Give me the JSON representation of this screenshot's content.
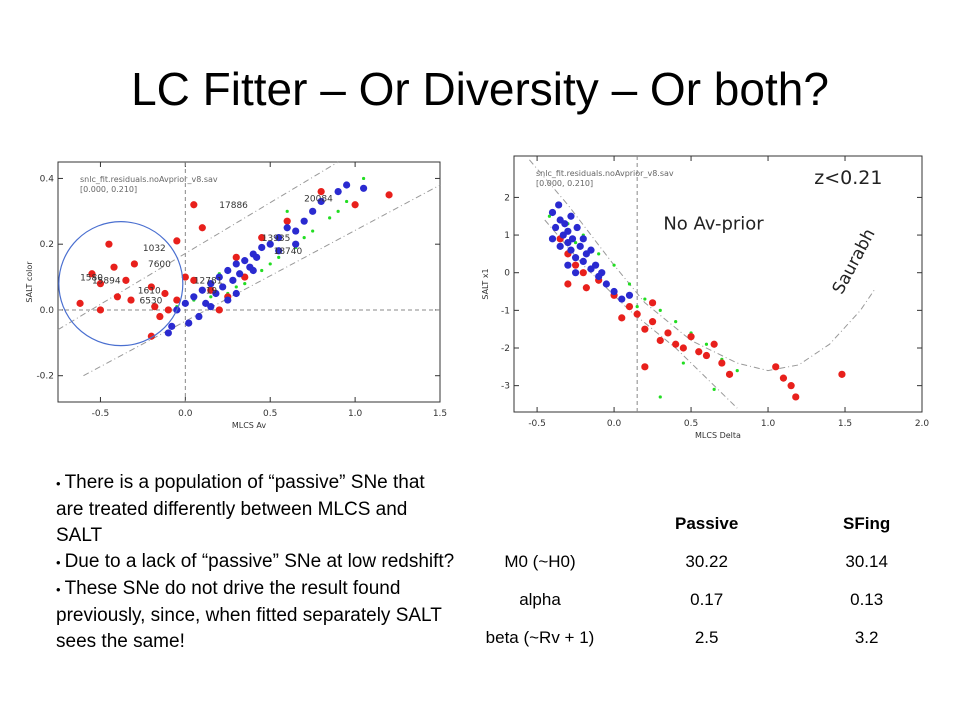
{
  "slide": {
    "title": "LC Fitter – Or Diversity – Or both?"
  },
  "bullets": [
    "There is a population of “passive” SNe that are treated differently between MLCS and SALT",
    "Due to a lack of “passive” SNe at low redshift?",
    "These SNe do not drive the result found previously, since, when fitted separately SALT sees the same!"
  ],
  "table": {
    "headers": [
      "",
      "Passive",
      "SFing"
    ],
    "rows": [
      [
        "M0 (~H0)",
        "30.22",
        "30.14"
      ],
      [
        "alpha",
        "0.17",
        "0.13"
      ],
      [
        "beta (~Rv + 1)",
        "2.5",
        "3.2"
      ]
    ]
  },
  "chart_data": [
    {
      "type": "scatter",
      "file_label": "snlc_fit.residuals.noAvprior_v8.sav",
      "range_label": "[0.000, 0.210]",
      "xlabel": "MLCS Av",
      "ylabel": "SALT color",
      "xlim": [
        -0.75,
        1.5
      ],
      "ylim": [
        -0.28,
        0.45
      ],
      "xticks": [
        "-0.5",
        "0.0",
        "0.5",
        "1.0",
        "1.5"
      ],
      "yticks": [
        "-0.2",
        "0.0",
        "0.2",
        "0.4"
      ],
      "sn_labels": [
        "17886",
        "20084",
        "1032",
        "7600",
        "1580",
        "15894",
        "13935",
        "18740",
        "12781",
        "19",
        "1610",
        "6530"
      ],
      "colors": {
        "red": "#e8201c",
        "blue": "#2a2ad0",
        "green": "#22dd22"
      },
      "series": [
        {
          "color": "red",
          "points": [
            [
              -0.62,
              0.02
            ],
            [
              -0.55,
              0.11
            ],
            [
              -0.5,
              0.08
            ],
            [
              -0.45,
              0.2
            ],
            [
              -0.42,
              0.13
            ],
            [
              -0.4,
              0.04
            ],
            [
              -0.35,
              0.09
            ],
            [
              -0.32,
              0.03
            ],
            [
              -0.5,
              0.0
            ],
            [
              -0.3,
              0.14
            ],
            [
              -0.2,
              0.07
            ],
            [
              -0.18,
              0.01
            ],
            [
              -0.12,
              0.05
            ],
            [
              -0.1,
              0.0
            ],
            [
              -0.05,
              0.03
            ],
            [
              -0.15,
              -0.02
            ],
            [
              -0.2,
              -0.08
            ],
            [
              0.05,
              0.32
            ],
            [
              -0.05,
              0.21
            ],
            [
              0.1,
              0.25
            ],
            [
              0.15,
              0.06
            ],
            [
              0.2,
              0.0
            ],
            [
              0.3,
              0.16
            ],
            [
              0.45,
              0.22
            ],
            [
              0.6,
              0.27
            ],
            [
              0.8,
              0.36
            ],
            [
              1.0,
              0.32
            ],
            [
              1.2,
              0.35
            ],
            [
              0.25,
              0.04
            ],
            [
              0.35,
              0.1
            ],
            [
              0.05,
              0.09
            ],
            [
              0.0,
              0.1
            ]
          ]
        },
        {
          "color": "blue",
          "points": [
            [
              -0.05,
              0.0
            ],
            [
              0.0,
              0.02
            ],
            [
              0.05,
              0.04
            ],
            [
              0.1,
              0.06
            ],
            [
              0.12,
              0.02
            ],
            [
              0.15,
              0.08
            ],
            [
              0.18,
              0.05
            ],
            [
              0.2,
              0.1
            ],
            [
              0.22,
              0.07
            ],
            [
              0.25,
              0.12
            ],
            [
              0.28,
              0.09
            ],
            [
              0.3,
              0.14
            ],
            [
              0.32,
              0.11
            ],
            [
              0.35,
              0.15
            ],
            [
              0.38,
              0.13
            ],
            [
              0.4,
              0.17
            ],
            [
              0.42,
              0.16
            ],
            [
              0.45,
              0.19
            ],
            [
              0.5,
              0.2
            ],
            [
              0.55,
              0.22
            ],
            [
              0.6,
              0.25
            ],
            [
              0.65,
              0.24
            ],
            [
              0.7,
              0.27
            ],
            [
              0.75,
              0.3
            ],
            [
              0.8,
              0.33
            ],
            [
              0.9,
              0.36
            ],
            [
              0.95,
              0.38
            ],
            [
              1.05,
              0.37
            ],
            [
              0.08,
              -0.02
            ],
            [
              -0.08,
              -0.05
            ],
            [
              0.02,
              -0.04
            ],
            [
              0.15,
              0.01
            ],
            [
              0.3,
              0.05
            ],
            [
              0.25,
              0.03
            ],
            [
              -0.1,
              -0.07
            ],
            [
              0.4,
              0.12
            ],
            [
              0.55,
              0.18
            ],
            [
              0.65,
              0.2
            ]
          ]
        },
        {
          "color": "green",
          "points": [
            [
              -0.05,
              0.01
            ],
            [
              0.05,
              0.03
            ],
            [
              0.15,
              0.04
            ],
            [
              0.25,
              0.05
            ],
            [
              0.35,
              0.08
            ],
            [
              0.45,
              0.12
            ],
            [
              0.55,
              0.16
            ],
            [
              0.65,
              0.19
            ],
            [
              0.75,
              0.24
            ],
            [
              0.85,
              0.28
            ],
            [
              0.95,
              0.33
            ],
            [
              1.05,
              0.4
            ],
            [
              0.6,
              0.3
            ],
            [
              0.7,
              0.22
            ],
            [
              0.5,
              0.14
            ],
            [
              0.3,
              0.07
            ],
            [
              0.2,
              0.11
            ],
            [
              0.9,
              0.3
            ]
          ]
        }
      ]
    },
    {
      "type": "scatter",
      "file_label": "snlc_fit.residuals.noAvprior_v8.sav",
      "range_label": "[0.000, 0.210]",
      "annotations": [
        "z<0.21",
        "No Av-prior",
        "Saurabh"
      ],
      "xlabel": "MLCS Delta",
      "ylabel": "SALT x1",
      "xlim": [
        -0.65,
        2.0
      ],
      "ylim": [
        -3.7,
        3.1
      ],
      "xticks": [
        "-0.5",
        "0.0",
        "0.5",
        "1.0",
        "1.5",
        "2.0"
      ],
      "yticks": [
        "-3",
        "-2",
        "-1",
        "0",
        "1",
        "2"
      ],
      "colors": {
        "red": "#e8201c",
        "blue": "#2a2ad0",
        "green": "#22dd22"
      },
      "series": [
        {
          "color": "red",
          "points": [
            [
              -0.35,
              0.9
            ],
            [
              -0.3,
              0.5
            ],
            [
              -0.25,
              0.2
            ],
            [
              -0.2,
              0.0
            ],
            [
              -0.18,
              -0.4
            ],
            [
              -0.1,
              -0.2
            ],
            [
              0.0,
              -0.6
            ],
            [
              0.1,
              -0.9
            ],
            [
              0.15,
              -1.1
            ],
            [
              0.2,
              -1.5
            ],
            [
              0.25,
              -1.3
            ],
            [
              0.3,
              -1.8
            ],
            [
              0.35,
              -1.6
            ],
            [
              0.4,
              -1.9
            ],
            [
              0.45,
              -2.0
            ],
            [
              0.5,
              -1.7
            ],
            [
              0.55,
              -2.1
            ],
            [
              0.6,
              -2.2
            ],
            [
              0.7,
              -2.4
            ],
            [
              0.75,
              -2.7
            ],
            [
              1.05,
              -2.5
            ],
            [
              1.1,
              -2.8
            ],
            [
              1.15,
              -3.0
            ],
            [
              1.18,
              -3.3
            ],
            [
              1.48,
              -2.7
            ],
            [
              -0.3,
              -0.3
            ],
            [
              0.05,
              -1.2
            ],
            [
              0.25,
              -0.8
            ],
            [
              0.65,
              -1.9
            ],
            [
              0.2,
              -2.5
            ]
          ]
        },
        {
          "color": "blue",
          "points": [
            [
              -0.4,
              1.6
            ],
            [
              -0.38,
              1.2
            ],
            [
              -0.35,
              1.4
            ],
            [
              -0.33,
              1.0
            ],
            [
              -0.32,
              1.3
            ],
            [
              -0.3,
              0.8
            ],
            [
              -0.3,
              1.1
            ],
            [
              -0.28,
              0.6
            ],
            [
              -0.27,
              0.9
            ],
            [
              -0.25,
              0.4
            ],
            [
              -0.24,
              1.2
            ],
            [
              -0.22,
              0.7
            ],
            [
              -0.2,
              0.3
            ],
            [
              -0.18,
              0.5
            ],
            [
              -0.15,
              0.1
            ],
            [
              -0.12,
              0.2
            ],
            [
              -0.1,
              -0.1
            ],
            [
              -0.08,
              0.0
            ],
            [
              -0.05,
              -0.3
            ],
            [
              0.0,
              -0.5
            ],
            [
              0.05,
              -0.7
            ],
            [
              0.1,
              -0.6
            ],
            [
              -0.35,
              0.7
            ],
            [
              -0.28,
              1.5
            ],
            [
              -0.2,
              0.9
            ],
            [
              -0.15,
              0.6
            ],
            [
              -0.3,
              0.2
            ],
            [
              -0.4,
              0.9
            ],
            [
              -0.36,
              1.8
            ],
            [
              -0.25,
              0.0
            ]
          ]
        },
        {
          "color": "green",
          "points": [
            [
              -0.42,
              1.5
            ],
            [
              -0.3,
              1.3
            ],
            [
              -0.2,
              1.0
            ],
            [
              -0.1,
              0.5
            ],
            [
              0.0,
              0.2
            ],
            [
              0.1,
              -0.3
            ],
            [
              0.2,
              -0.7
            ],
            [
              0.3,
              -1.0
            ],
            [
              0.4,
              -1.3
            ],
            [
              0.5,
              -1.6
            ],
            [
              0.6,
              -1.9
            ],
            [
              0.7,
              -2.3
            ],
            [
              0.8,
              -2.6
            ],
            [
              0.65,
              -3.1
            ],
            [
              0.3,
              -3.3
            ],
            [
              0.15,
              -0.9
            ],
            [
              0.45,
              -2.4
            ],
            [
              -0.25,
              0.8
            ]
          ]
        }
      ]
    }
  ]
}
